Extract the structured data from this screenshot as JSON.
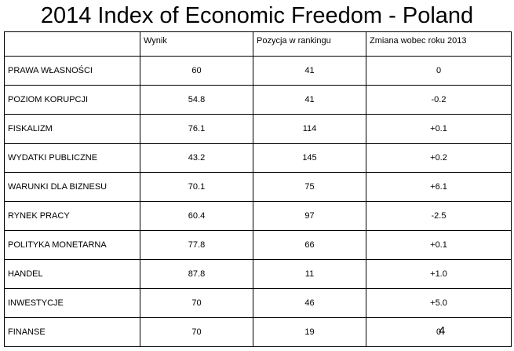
{
  "title": "2014 Index of Economic Freedom - Poland",
  "table": {
    "header": [
      "",
      "Wynik",
      "Pozycja w rankingu",
      "Zmiana wobec roku 2013"
    ],
    "rows": [
      [
        "PRAWA WŁASNOŚCI",
        "60",
        "41",
        "0"
      ],
      [
        "POZIOM KORUPCJI",
        "54.8",
        "41",
        "-0.2"
      ],
      [
        "FISKALIZM",
        "76.1",
        "114",
        "+0.1"
      ],
      [
        "WYDATKI PUBLICZNE",
        "43.2",
        "145",
        "+0.2"
      ],
      [
        "WARUNKI DLA BIZNESU",
        "70.1",
        "75",
        "+6.1"
      ],
      [
        "RYNEK PRACY",
        "60.4",
        "97",
        "-2.5"
      ],
      [
        "POLITYKA MONETARNA",
        "77.8",
        "66",
        "+0.1"
      ],
      [
        "HANDEL",
        "87.8",
        "11",
        "+1.0"
      ],
      [
        "INWESTYCJE",
        "70",
        "46",
        "+5.0"
      ],
      [
        "FINANSE",
        "70",
        "19",
        "0"
      ]
    ]
  },
  "page_number": "4"
}
